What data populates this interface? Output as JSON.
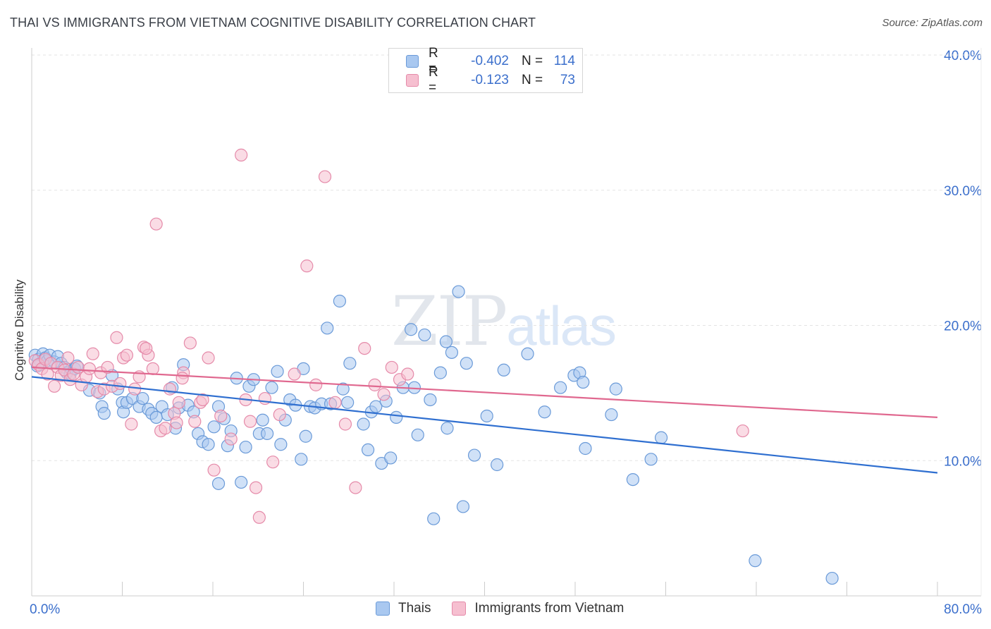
{
  "title": "THAI VS IMMIGRANTS FROM VIETNAM COGNITIVE DISABILITY CORRELATION CHART",
  "source": "Source: ZipAtlas.com",
  "watermark": {
    "zip": "ZIP",
    "atlas": "atlas"
  },
  "legend": {
    "rows": [
      {
        "r_label": "R =",
        "r_value": "-0.402",
        "n_label": "N =",
        "n_value": "114"
      },
      {
        "r_label": "R =",
        "r_value": "-0.123",
        "n_label": "N =",
        "n_value": "73"
      }
    ]
  },
  "colors": {
    "thai_fill": "#a9c8f0",
    "thai_stroke": "#6a9ad8",
    "thai_line": "#2f6fd0",
    "viet_fill": "#f6bfd0",
    "viet_stroke": "#e58aa9",
    "viet_line": "#e0688f",
    "axis_text": "#3b6fcc",
    "grid": "#e3e3e3"
  },
  "chart_data": {
    "type": "scatter",
    "title": "THAI VS IMMIGRANTS FROM VIETNAM COGNITIVE DISABILITY CORRELATION CHART",
    "xlabel": "",
    "ylabel": "Cognitive Disability",
    "xlim": [
      0,
      80
    ],
    "ylim": [
      0,
      40
    ],
    "x_tick_labels": [
      "0.0%",
      "80.0%"
    ],
    "y_ticks": [
      10,
      20,
      30,
      40
    ],
    "y_tick_labels": [
      "10.0%",
      "20.0%",
      "30.0%",
      "40.0%"
    ],
    "grid": true,
    "legend_position": "top-center",
    "series": [
      {
        "name": "Thais",
        "r": -0.402,
        "n": 114,
        "trend": {
          "x": [
            0,
            80
          ],
          "y": [
            16.2,
            9.1
          ]
        },
        "points": [
          [
            0.3,
            17.8
          ],
          [
            0.6,
            17.5
          ],
          [
            0.8,
            17.2
          ],
          [
            1.0,
            17.9
          ],
          [
            1.2,
            17.6
          ],
          [
            1.4,
            17.4
          ],
          [
            1.6,
            17.8
          ],
          [
            2.0,
            17.3
          ],
          [
            2.3,
            17.7
          ],
          [
            2.6,
            17.2
          ],
          [
            2.9,
            16.9
          ],
          [
            3.1,
            16.5
          ],
          [
            3.4,
            16.4
          ],
          [
            3.8,
            16.8
          ],
          [
            4.0,
            17.0
          ],
          [
            5.1,
            15.2
          ],
          [
            6.0,
            15.0
          ],
          [
            6.2,
            14.0
          ],
          [
            6.4,
            13.5
          ],
          [
            7.1,
            16.3
          ],
          [
            7.6,
            15.3
          ],
          [
            8.0,
            14.3
          ],
          [
            8.1,
            13.6
          ],
          [
            8.4,
            14.3
          ],
          [
            8.9,
            14.6
          ],
          [
            9.5,
            14.0
          ],
          [
            9.8,
            14.6
          ],
          [
            10.3,
            13.8
          ],
          [
            10.6,
            13.5
          ],
          [
            11.0,
            13.2
          ],
          [
            11.5,
            14.0
          ],
          [
            12.0,
            13.4
          ],
          [
            12.4,
            15.4
          ],
          [
            12.7,
            12.4
          ],
          [
            13.0,
            13.9
          ],
          [
            13.4,
            17.1
          ],
          [
            13.8,
            14.1
          ],
          [
            14.3,
            13.6
          ],
          [
            14.7,
            12.0
          ],
          [
            15.1,
            11.4
          ],
          [
            15.6,
            11.2
          ],
          [
            16.1,
            12.5
          ],
          [
            16.5,
            14.0
          ],
          [
            17.0,
            13.1
          ],
          [
            17.3,
            11.1
          ],
          [
            17.6,
            12.2
          ],
          [
            18.1,
            16.1
          ],
          [
            18.5,
            8.4
          ],
          [
            18.9,
            11.0
          ],
          [
            19.2,
            15.5
          ],
          [
            19.6,
            16.0
          ],
          [
            20.1,
            12.0
          ],
          [
            20.4,
            13.0
          ],
          [
            20.8,
            12.0
          ],
          [
            21.2,
            15.4
          ],
          [
            21.7,
            16.6
          ],
          [
            22.0,
            11.2
          ],
          [
            22.4,
            13.0
          ],
          [
            22.8,
            14.5
          ],
          [
            23.3,
            14.1
          ],
          [
            23.8,
            10.1
          ],
          [
            24.2,
            11.8
          ],
          [
            24.6,
            14.0
          ],
          [
            25.0,
            13.9
          ],
          [
            25.6,
            14.2
          ],
          [
            26.1,
            19.8
          ],
          [
            26.4,
            14.2
          ],
          [
            27.2,
            21.8
          ],
          [
            27.5,
            15.3
          ],
          [
            27.9,
            14.3
          ],
          [
            28.1,
            17.2
          ],
          [
            29.3,
            12.7
          ],
          [
            29.7,
            10.8
          ],
          [
            30.0,
            13.6
          ],
          [
            30.4,
            14.0
          ],
          [
            30.9,
            9.8
          ],
          [
            31.3,
            14.4
          ],
          [
            31.7,
            10.2
          ],
          [
            32.2,
            13.2
          ],
          [
            32.8,
            15.4
          ],
          [
            33.5,
            19.7
          ],
          [
            33.8,
            15.4
          ],
          [
            34.1,
            11.9
          ],
          [
            34.7,
            19.3
          ],
          [
            35.2,
            14.5
          ],
          [
            35.5,
            5.7
          ],
          [
            36.1,
            16.5
          ],
          [
            36.6,
            18.8
          ],
          [
            37.1,
            18.0
          ],
          [
            37.7,
            22.5
          ],
          [
            38.1,
            6.6
          ],
          [
            38.4,
            17.2
          ],
          [
            39.1,
            10.4
          ],
          [
            40.2,
            13.3
          ],
          [
            41.1,
            9.7
          ],
          [
            41.7,
            16.7
          ],
          [
            43.8,
            17.9
          ],
          [
            45.3,
            13.6
          ],
          [
            46.7,
            15.4
          ],
          [
            47.9,
            16.3
          ],
          [
            48.4,
            16.5
          ],
          [
            48.7,
            15.8
          ],
          [
            48.9,
            10.9
          ],
          [
            51.2,
            13.4
          ],
          [
            51.6,
            15.3
          ],
          [
            53.1,
            8.6
          ],
          [
            54.7,
            10.1
          ],
          [
            55.6,
            11.7
          ],
          [
            63.9,
            2.6
          ],
          [
            70.7,
            1.3
          ],
          [
            36.7,
            12.4
          ],
          [
            16.5,
            8.3
          ],
          [
            24.0,
            16.8
          ],
          [
            0.5,
            17.0
          ]
        ]
      },
      {
        "name": "Immigrants from Vietnam",
        "r": -0.123,
        "n": 73,
        "trend": {
          "x": [
            0,
            80
          ],
          "y": [
            16.9,
            13.2
          ]
        },
        "points": [
          [
            0.3,
            17.4
          ],
          [
            0.6,
            17.1
          ],
          [
            0.9,
            16.8
          ],
          [
            1.2,
            17.5
          ],
          [
            1.4,
            16.4
          ],
          [
            1.7,
            17.2
          ],
          [
            2.0,
            15.5
          ],
          [
            2.3,
            16.9
          ],
          [
            2.6,
            16.3
          ],
          [
            2.9,
            16.7
          ],
          [
            3.2,
            17.6
          ],
          [
            3.4,
            16.0
          ],
          [
            3.7,
            16.4
          ],
          [
            4.1,
            16.9
          ],
          [
            4.4,
            15.6
          ],
          [
            4.8,
            16.2
          ],
          [
            5.1,
            16.8
          ],
          [
            5.4,
            17.9
          ],
          [
            5.8,
            15.1
          ],
          [
            6.1,
            16.5
          ],
          [
            6.4,
            15.3
          ],
          [
            6.7,
            16.9
          ],
          [
            7.1,
            15.5
          ],
          [
            7.5,
            19.1
          ],
          [
            7.8,
            15.7
          ],
          [
            8.1,
            17.6
          ],
          [
            8.4,
            17.8
          ],
          [
            8.8,
            12.7
          ],
          [
            9.1,
            15.3
          ],
          [
            9.5,
            16.2
          ],
          [
            9.9,
            18.4
          ],
          [
            10.3,
            17.8
          ],
          [
            10.7,
            16.8
          ],
          [
            11.0,
            27.5
          ],
          [
            11.4,
            12.2
          ],
          [
            11.8,
            12.4
          ],
          [
            12.2,
            15.3
          ],
          [
            12.6,
            13.5
          ],
          [
            13.0,
            14.3
          ],
          [
            13.4,
            16.5
          ],
          [
            14.0,
            18.7
          ],
          [
            14.4,
            12.9
          ],
          [
            14.9,
            14.3
          ],
          [
            15.6,
            17.6
          ],
          [
            16.1,
            9.3
          ],
          [
            16.7,
            13.3
          ],
          [
            17.6,
            11.6
          ],
          [
            18.5,
            32.6
          ],
          [
            18.9,
            14.5
          ],
          [
            19.3,
            12.9
          ],
          [
            19.8,
            8.0
          ],
          [
            20.1,
            5.8
          ],
          [
            20.6,
            14.6
          ],
          [
            21.3,
            9.9
          ],
          [
            21.9,
            13.4
          ],
          [
            23.2,
            16.4
          ],
          [
            24.3,
            24.4
          ],
          [
            25.1,
            15.6
          ],
          [
            25.9,
            31.0
          ],
          [
            26.8,
            14.3
          ],
          [
            27.7,
            12.7
          ],
          [
            28.6,
            8.0
          ],
          [
            29.4,
            18.3
          ],
          [
            30.3,
            15.6
          ],
          [
            31.1,
            14.9
          ],
          [
            31.8,
            16.9
          ],
          [
            32.5,
            16.0
          ],
          [
            33.2,
            16.4
          ],
          [
            62.8,
            12.2
          ],
          [
            13.3,
            16.1
          ],
          [
            12.8,
            12.8
          ],
          [
            10.1,
            18.3
          ],
          [
            15.1,
            14.5
          ]
        ]
      }
    ]
  },
  "bottom_legend": {
    "thai_label": "Thais",
    "viet_label": "Immigrants from Vietnam"
  }
}
